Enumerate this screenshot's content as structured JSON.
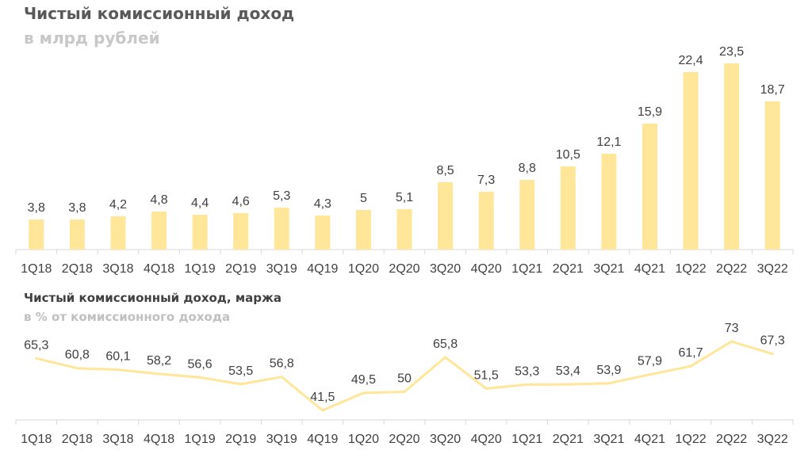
{
  "titles": {
    "chart1_title": "Чистый комиссионный доход",
    "chart1_subtitle": "в млрд рублей",
    "chart2_title": "Чистый комиссионный доход, маржа",
    "chart2_subtitle": "в % от комиссионного дохода"
  },
  "colors": {
    "bar": "#ffe699",
    "line": "#ffe699",
    "axis": "#d9d9d9",
    "text": "#404040"
  },
  "chart_data": [
    {
      "type": "bar",
      "title": "Чистый комиссионный доход",
      "subtitle": "в млрд рублей",
      "categories": [
        "1Q18",
        "2Q18",
        "3Q18",
        "4Q18",
        "1Q19",
        "2Q19",
        "3Q19",
        "4Q19",
        "1Q20",
        "2Q20",
        "3Q20",
        "4Q20",
        "1Q21",
        "2Q21",
        "3Q21",
        "4Q21",
        "1Q22",
        "2Q22",
        "3Q22"
      ],
      "values": [
        3.8,
        3.8,
        4.2,
        4.8,
        4.4,
        4.6,
        5.3,
        4.3,
        5,
        5.1,
        8.5,
        7.3,
        8.8,
        10.5,
        12.1,
        15.9,
        22.4,
        23.5,
        18.7
      ],
      "labels": [
        "3,8",
        "3,8",
        "4,2",
        "4,8",
        "4,4",
        "4,6",
        "5,3",
        "4,3",
        "5",
        "5,1",
        "8,5",
        "7,3",
        "8,8",
        "10,5",
        "12,1",
        "15,9",
        "22,4",
        "23,5",
        "18,7"
      ],
      "ylim": [
        0,
        23.5
      ],
      "grid": false,
      "legend": "none"
    },
    {
      "type": "line",
      "title": "Чистый комиссионный доход, маржа",
      "subtitle": "в % от комиссионного дохода",
      "categories": [
        "1Q18",
        "2Q18",
        "3Q18",
        "4Q18",
        "1Q19",
        "2Q19",
        "3Q19",
        "4Q19",
        "1Q20",
        "2Q20",
        "3Q20",
        "4Q20",
        "1Q21",
        "2Q21",
        "3Q21",
        "4Q21",
        "1Q22",
        "2Q22",
        "3Q22"
      ],
      "values": [
        65.3,
        60.8,
        60.1,
        58.2,
        56.6,
        53.5,
        56.8,
        41.5,
        49.5,
        50,
        65.8,
        51.5,
        53.3,
        53.4,
        53.9,
        57.9,
        61.7,
        73,
        67.3
      ],
      "labels": [
        "65,3",
        "60,8",
        "60,1",
        "58,2",
        "56,6",
        "53,5",
        "56,8",
        "41,5",
        "49,5",
        "50",
        "65,8",
        "51,5",
        "53,3",
        "53,4",
        "53,9",
        "57,9",
        "61,7",
        "73",
        "67,3"
      ],
      "ylim": [
        41.5,
        73
      ],
      "grid": false,
      "legend": "none"
    }
  ]
}
